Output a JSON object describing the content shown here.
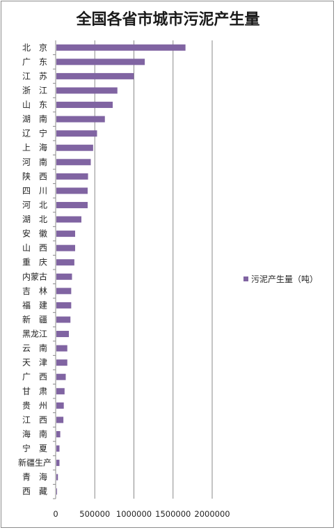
{
  "chart_data": {
    "type": "bar",
    "orientation": "horizontal",
    "title": "全国各省市城市污泥产生量",
    "categories": [
      "北　京",
      "广　东",
      "江　苏",
      "浙　江",
      "山　东",
      "湖　南",
      "辽　宁",
      "上　海",
      "河　南",
      "陕　西",
      "四　川",
      "河　北",
      "湖　北",
      "安　徽",
      "山　西",
      "重　庆",
      "内蒙古",
      "吉　林",
      "福　建",
      "新　疆",
      "黑龙江",
      "云　南",
      "天　津",
      "广　西",
      "甘　肃",
      "贵　州",
      "江　西",
      "海　南",
      "宁　夏",
      "新疆生产",
      "青　海",
      "西　藏"
    ],
    "series": [
      {
        "name": "污泥产生量（吨）",
        "values": [
          1650000,
          1130000,
          990000,
          780000,
          720000,
          620000,
          520000,
          470000,
          440000,
          405000,
          400000,
          400000,
          320000,
          240000,
          240000,
          230000,
          200000,
          190000,
          190000,
          180000,
          160000,
          140000,
          140000,
          120000,
          105000,
          95000,
          90000,
          50000,
          40000,
          40000,
          20000,
          3000
        ]
      }
    ],
    "xticks": [
      "0",
      "500000",
      "1000000",
      "1500000",
      "2000000"
    ],
    "xlim": [
      0,
      2000000
    ],
    "grid": true,
    "legend_position": "right",
    "bar_color": "#8064a2"
  }
}
